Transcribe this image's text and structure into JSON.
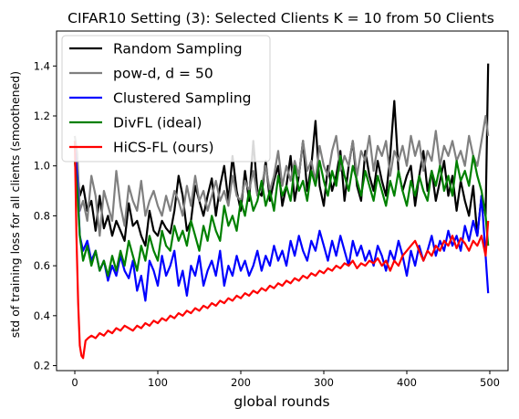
{
  "chart_data": {
    "type": "line",
    "title": "CIFAR10 Setting (3): Selected Clients K = 10 from 50 Clients",
    "xlabel": "global rounds",
    "ylabel": "std of training loss for all clients (smoothened)",
    "xlim": [
      -22,
      522
    ],
    "ylim": [
      0.18,
      1.54
    ],
    "xticks": [
      0,
      100,
      200,
      300,
      400,
      500
    ],
    "yticks": [
      0.2,
      0.4,
      0.6,
      0.8,
      1.0,
      1.2,
      1.4
    ],
    "ytick_labels": [
      "0.2",
      "0.4",
      "0.6",
      "0.8",
      "1.0",
      "1.2",
      "1.4"
    ],
    "grid": false,
    "legend_position": "upper-left",
    "series": [
      {
        "name": "Random Sampling",
        "color": "#000000",
        "x": [
          0,
          3,
          6,
          10,
          15,
          20,
          25,
          30,
          35,
          40,
          45,
          50,
          55,
          60,
          65,
          70,
          75,
          80,
          85,
          90,
          95,
          100,
          105,
          110,
          115,
          120,
          125,
          130,
          135,
          140,
          145,
          150,
          155,
          160,
          165,
          170,
          175,
          180,
          185,
          190,
          195,
          200,
          205,
          210,
          215,
          220,
          225,
          230,
          235,
          240,
          245,
          250,
          255,
          260,
          265,
          270,
          275,
          280,
          285,
          290,
          295,
          300,
          305,
          310,
          315,
          320,
          325,
          330,
          335,
          340,
          345,
          350,
          355,
          360,
          365,
          370,
          375,
          380,
          385,
          390,
          395,
          400,
          405,
          410,
          415,
          420,
          425,
          430,
          435,
          440,
          445,
          450,
          455,
          460,
          465,
          470,
          475,
          480,
          485,
          490,
          495,
          498
        ],
        "y": [
          1.1,
          0.98,
          0.88,
          0.92,
          0.82,
          0.86,
          0.74,
          0.88,
          0.75,
          0.8,
          0.72,
          0.78,
          0.74,
          0.7,
          0.85,
          0.76,
          0.78,
          0.72,
          0.68,
          0.82,
          0.74,
          0.72,
          0.78,
          0.75,
          0.73,
          0.82,
          0.96,
          0.88,
          0.74,
          0.78,
          0.92,
          0.86,
          0.8,
          0.88,
          0.95,
          0.8,
          0.92,
          1.0,
          0.86,
          1.04,
          0.9,
          0.82,
          0.98,
          0.86,
          1.1,
          0.9,
          0.88,
          1.02,
          0.86,
          0.94,
          1.0,
          0.84,
          0.92,
          1.04,
          0.86,
          0.96,
          1.1,
          0.9,
          1.0,
          1.18,
          0.92,
          0.84,
          1.0,
          0.9,
          0.96,
          1.06,
          0.86,
          1.0,
          1.1,
          0.92,
          0.86,
          1.06,
          0.96,
          0.9,
          1.02,
          0.94,
          0.88,
          1.04,
          1.26,
          0.98,
          0.9,
          0.96,
          1.0,
          0.84,
          0.96,
          1.06,
          0.9,
          0.98,
          0.86,
          0.94,
          1.02,
          0.88,
          0.96,
          0.82,
          0.94,
          0.86,
          0.8,
          0.92,
          0.72,
          0.88,
          0.8,
          1.41
        ]
      },
      {
        "name": "pow-d, d = 50",
        "color": "#808080",
        "x": [
          0,
          3,
          6,
          10,
          15,
          20,
          25,
          30,
          35,
          40,
          45,
          50,
          55,
          60,
          65,
          70,
          75,
          80,
          85,
          90,
          95,
          100,
          105,
          110,
          115,
          120,
          125,
          130,
          135,
          140,
          145,
          150,
          155,
          160,
          165,
          170,
          175,
          180,
          185,
          190,
          195,
          200,
          205,
          210,
          215,
          220,
          225,
          230,
          235,
          240,
          245,
          250,
          255,
          260,
          265,
          270,
          275,
          280,
          285,
          290,
          295,
          300,
          305,
          310,
          315,
          320,
          325,
          330,
          335,
          340,
          345,
          350,
          355,
          360,
          365,
          370,
          375,
          380,
          385,
          390,
          395,
          400,
          405,
          410,
          415,
          420,
          425,
          430,
          435,
          440,
          445,
          450,
          455,
          460,
          465,
          470,
          475,
          480,
          485,
          490,
          495,
          498
        ],
        "y": [
          1.12,
          1.05,
          0.82,
          0.86,
          0.78,
          0.96,
          0.88,
          0.72,
          0.9,
          0.84,
          0.78,
          0.98,
          0.84,
          0.76,
          0.92,
          0.86,
          0.82,
          0.94,
          0.8,
          0.86,
          0.9,
          0.84,
          0.8,
          0.88,
          0.82,
          0.9,
          0.86,
          0.8,
          0.92,
          0.84,
          0.96,
          0.86,
          0.9,
          0.82,
          0.88,
          0.94,
          0.86,
          0.9,
          0.84,
          0.96,
          0.88,
          0.86,
          0.94,
          0.9,
          0.98,
          0.88,
          0.92,
          1.0,
          0.9,
          0.96,
          1.06,
          0.92,
          1.0,
          0.94,
          1.02,
          0.96,
          1.1,
          0.98,
          1.02,
          0.94,
          1.08,
          1.0,
          0.96,
          1.06,
          1.12,
          0.98,
          1.04,
          1.0,
          1.1,
          0.96,
          1.06,
          1.02,
          1.12,
          0.98,
          1.08,
          1.04,
          1.1,
          0.96,
          1.06,
          1.02,
          1.08,
          1.0,
          1.12,
          1.04,
          1.1,
          0.98,
          1.06,
          1.02,
          1.14,
          1.0,
          1.08,
          1.04,
          1.1,
          1.02,
          1.06,
          1.0,
          1.12,
          1.04,
          1.0,
          1.1,
          1.2,
          1.12
        ]
      },
      {
        "name": "Clustered Sampling",
        "color": "#0000ff",
        "x": [
          0,
          3,
          6,
          10,
          15,
          20,
          25,
          30,
          35,
          40,
          45,
          50,
          55,
          60,
          65,
          70,
          75,
          80,
          85,
          90,
          95,
          100,
          105,
          110,
          115,
          120,
          125,
          130,
          135,
          140,
          145,
          150,
          155,
          160,
          165,
          170,
          175,
          180,
          185,
          190,
          195,
          200,
          205,
          210,
          215,
          220,
          225,
          230,
          235,
          240,
          245,
          250,
          255,
          260,
          265,
          270,
          275,
          280,
          285,
          290,
          295,
          300,
          305,
          310,
          315,
          320,
          325,
          330,
          335,
          340,
          345,
          350,
          355,
          360,
          365,
          370,
          375,
          380,
          385,
          390,
          395,
          400,
          405,
          410,
          415,
          420,
          425,
          430,
          435,
          440,
          445,
          450,
          455,
          460,
          465,
          470,
          475,
          480,
          485,
          490,
          495,
          498
        ],
        "y": [
          1.08,
          0.95,
          0.72,
          0.66,
          0.7,
          0.62,
          0.66,
          0.58,
          0.62,
          0.54,
          0.6,
          0.56,
          0.64,
          0.58,
          0.55,
          0.62,
          0.5,
          0.56,
          0.46,
          0.62,
          0.58,
          0.52,
          0.64,
          0.56,
          0.6,
          0.66,
          0.52,
          0.58,
          0.48,
          0.6,
          0.56,
          0.64,
          0.52,
          0.58,
          0.62,
          0.56,
          0.66,
          0.52,
          0.6,
          0.56,
          0.64,
          0.58,
          0.62,
          0.56,
          0.6,
          0.66,
          0.58,
          0.64,
          0.6,
          0.68,
          0.62,
          0.66,
          0.6,
          0.7,
          0.64,
          0.72,
          0.66,
          0.62,
          0.7,
          0.66,
          0.74,
          0.68,
          0.62,
          0.7,
          0.64,
          0.72,
          0.66,
          0.6,
          0.7,
          0.64,
          0.68,
          0.62,
          0.66,
          0.6,
          0.68,
          0.64,
          0.58,
          0.66,
          0.62,
          0.7,
          0.64,
          0.56,
          0.66,
          0.6,
          0.68,
          0.62,
          0.66,
          0.72,
          0.64,
          0.7,
          0.66,
          0.74,
          0.68,
          0.72,
          0.66,
          0.76,
          0.7,
          0.78,
          0.72,
          0.88,
          0.64,
          0.49
        ]
      },
      {
        "name": "DivFL (ideal)",
        "color": "#008000",
        "x": [
          0,
          3,
          6,
          10,
          15,
          20,
          25,
          30,
          35,
          40,
          45,
          50,
          55,
          60,
          65,
          70,
          75,
          80,
          85,
          90,
          95,
          100,
          105,
          110,
          115,
          120,
          125,
          130,
          135,
          140,
          145,
          150,
          155,
          160,
          165,
          170,
          175,
          180,
          185,
          190,
          195,
          200,
          205,
          210,
          215,
          220,
          225,
          230,
          235,
          240,
          245,
          250,
          255,
          260,
          265,
          270,
          275,
          280,
          285,
          290,
          295,
          300,
          305,
          310,
          315,
          320,
          325,
          330,
          335,
          340,
          345,
          350,
          355,
          360,
          365,
          370,
          375,
          380,
          385,
          390,
          395,
          400,
          405,
          410,
          415,
          420,
          425,
          430,
          435,
          440,
          445,
          450,
          455,
          460,
          465,
          470,
          475,
          480,
          485,
          490,
          495,
          498
        ],
        "y": [
          1.02,
          0.9,
          0.72,
          0.62,
          0.68,
          0.6,
          0.66,
          0.58,
          0.62,
          0.56,
          0.64,
          0.58,
          0.66,
          0.6,
          0.7,
          0.64,
          0.58,
          0.68,
          0.62,
          0.72,
          0.66,
          0.62,
          0.74,
          0.68,
          0.66,
          0.76,
          0.7,
          0.74,
          0.68,
          0.78,
          0.72,
          0.66,
          0.76,
          0.7,
          0.8,
          0.74,
          0.7,
          0.84,
          0.76,
          0.8,
          0.74,
          0.86,
          0.8,
          0.9,
          0.82,
          0.86,
          0.94,
          0.84,
          0.9,
          0.82,
          0.96,
          0.88,
          0.92,
          0.86,
          1.0,
          0.9,
          0.94,
          0.86,
          0.98,
          0.92,
          1.02,
          0.94,
          0.88,
          0.98,
          0.92,
          1.04,
          0.96,
          0.9,
          1.0,
          0.94,
          0.88,
          0.98,
          0.92,
          0.86,
          0.96,
          0.9,
          0.84,
          0.94,
          0.88,
          0.98,
          0.9,
          0.84,
          0.94,
          0.88,
          0.96,
          0.9,
          0.86,
          0.98,
          0.92,
          1.0,
          0.9,
          0.96,
          0.88,
          1.02,
          0.94,
          0.98,
          0.92,
          1.04,
          0.96,
          0.9,
          0.8,
          0.68
        ]
      },
      {
        "name": "HiCS-FL (ours)",
        "color": "#ff0000",
        "x": [
          0,
          2,
          4,
          6,
          8,
          10,
          13,
          16,
          20,
          25,
          30,
          35,
          40,
          45,
          50,
          55,
          60,
          65,
          70,
          75,
          80,
          85,
          90,
          95,
          100,
          105,
          110,
          115,
          120,
          125,
          130,
          135,
          140,
          145,
          150,
          155,
          160,
          165,
          170,
          175,
          180,
          185,
          190,
          195,
          200,
          205,
          210,
          215,
          220,
          225,
          230,
          235,
          240,
          245,
          250,
          255,
          260,
          265,
          270,
          275,
          280,
          285,
          290,
          295,
          300,
          305,
          310,
          315,
          320,
          325,
          330,
          335,
          340,
          345,
          350,
          355,
          360,
          365,
          370,
          375,
          380,
          385,
          390,
          395,
          400,
          405,
          410,
          415,
          420,
          425,
          430,
          435,
          440,
          445,
          450,
          455,
          460,
          465,
          470,
          475,
          480,
          485,
          490,
          495,
          498
        ],
        "y": [
          1.1,
          0.72,
          0.45,
          0.28,
          0.24,
          0.23,
          0.3,
          0.31,
          0.32,
          0.31,
          0.33,
          0.32,
          0.34,
          0.33,
          0.35,
          0.34,
          0.36,
          0.35,
          0.34,
          0.36,
          0.35,
          0.37,
          0.36,
          0.38,
          0.37,
          0.39,
          0.38,
          0.4,
          0.39,
          0.41,
          0.4,
          0.42,
          0.41,
          0.43,
          0.42,
          0.44,
          0.43,
          0.45,
          0.44,
          0.46,
          0.45,
          0.47,
          0.46,
          0.48,
          0.47,
          0.49,
          0.48,
          0.5,
          0.49,
          0.51,
          0.5,
          0.52,
          0.51,
          0.53,
          0.52,
          0.54,
          0.53,
          0.55,
          0.54,
          0.56,
          0.55,
          0.57,
          0.56,
          0.58,
          0.57,
          0.59,
          0.58,
          0.6,
          0.59,
          0.61,
          0.6,
          0.62,
          0.59,
          0.61,
          0.6,
          0.62,
          0.61,
          0.63,
          0.6,
          0.62,
          0.58,
          0.62,
          0.6,
          0.64,
          0.66,
          0.68,
          0.7,
          0.66,
          0.62,
          0.66,
          0.64,
          0.68,
          0.66,
          0.7,
          0.68,
          0.72,
          0.67,
          0.71,
          0.69,
          0.66,
          0.7,
          0.68,
          0.72,
          0.64,
          0.78
        ]
      }
    ]
  }
}
